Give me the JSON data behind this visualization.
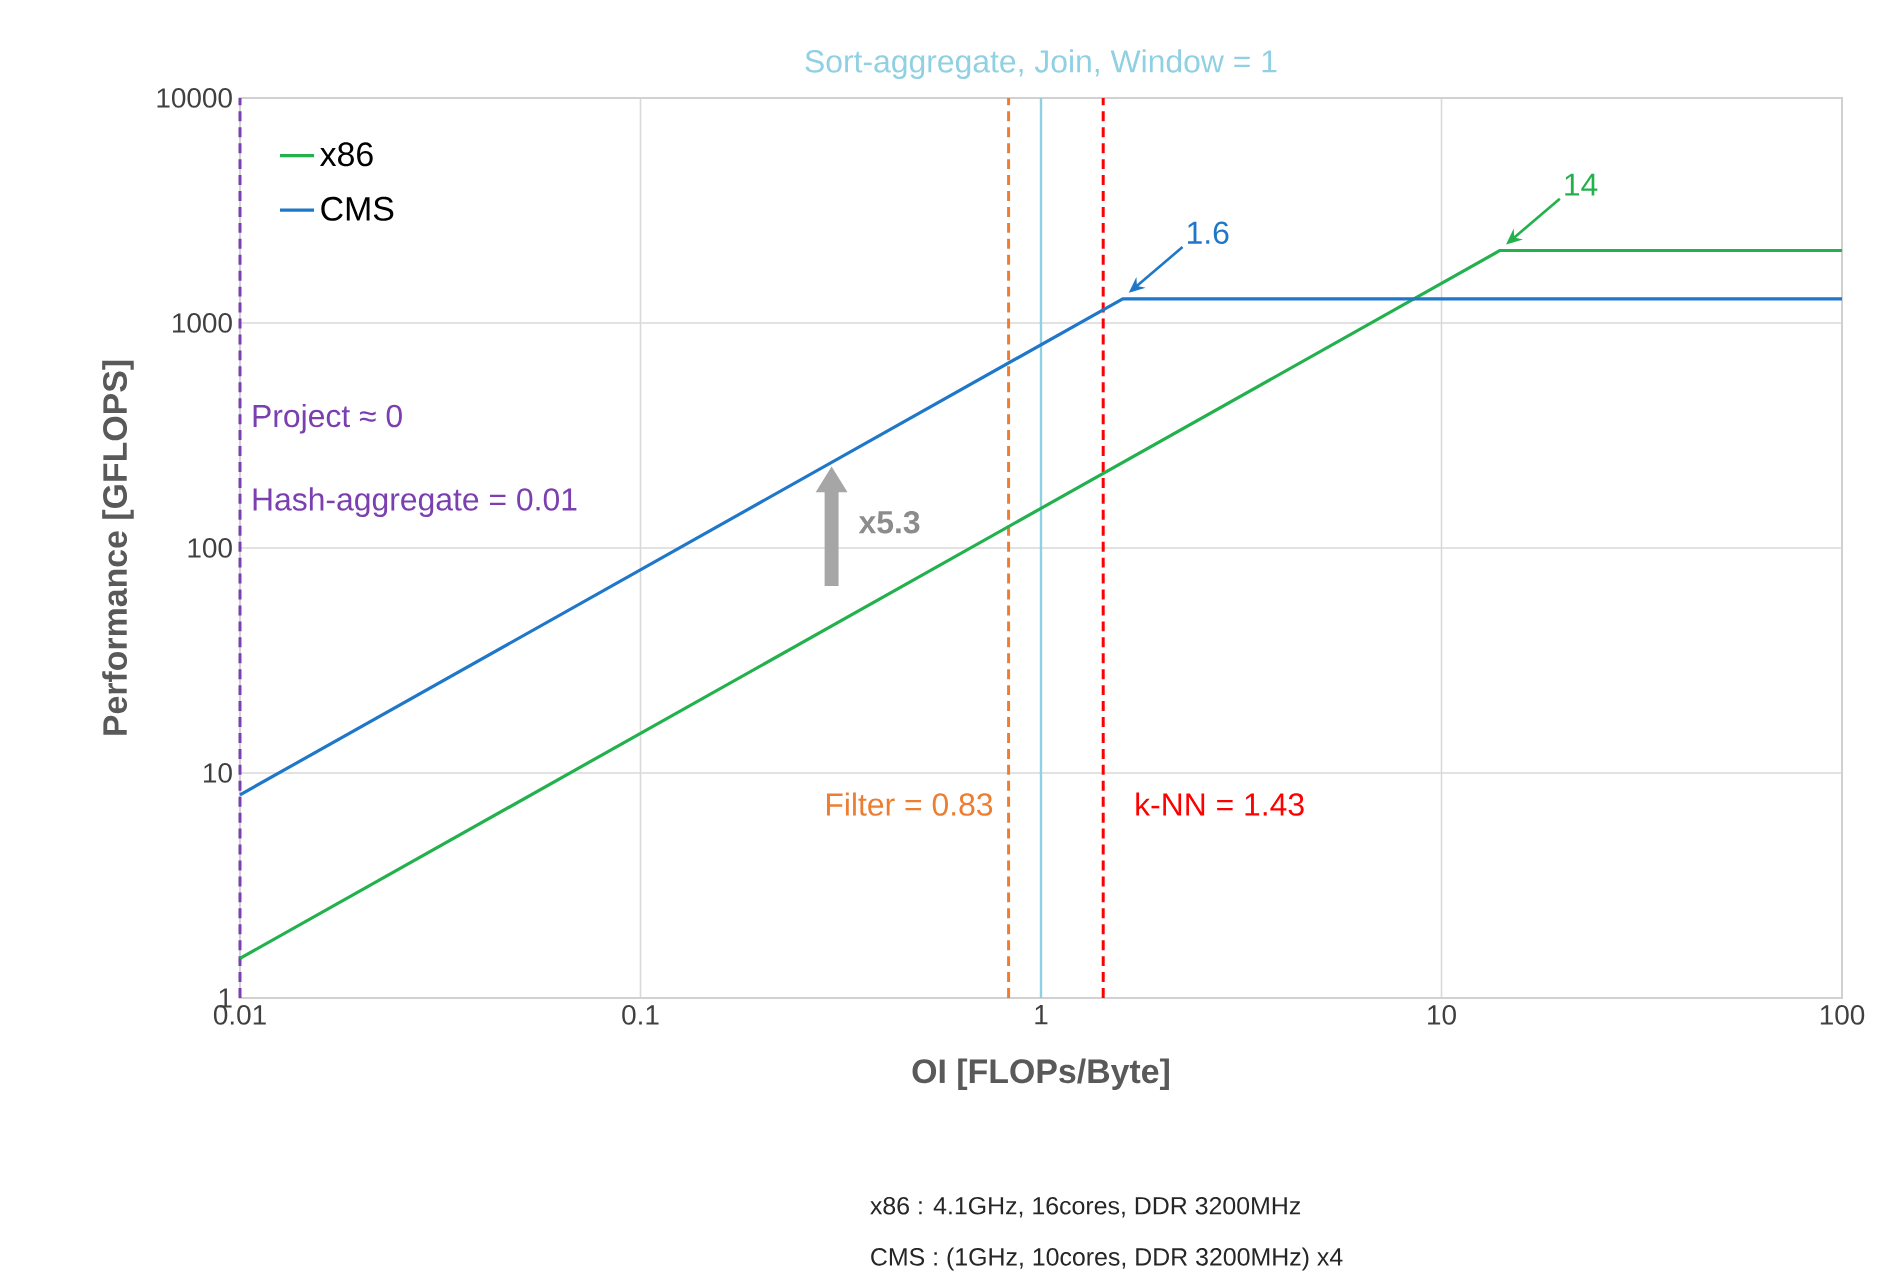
{
  "chart_data": {
    "type": "line",
    "xlabel": "OI [FLOPs/Byte]",
    "ylabel": "Performance [GFLOPS]",
    "series": [
      {
        "name": "x86",
        "color": "#22b14c",
        "x": [
          0.01,
          14,
          100
        ],
        "values": [
          1.5,
          2100,
          2100
        ]
      },
      {
        "name": "CMS",
        "color": "#1f77c9",
        "x": [
          0.01,
          1.6,
          100
        ],
        "values": [
          8,
          1280,
          1280
        ]
      }
    ],
    "xlim": [
      0.01,
      100
    ],
    "ylim": [
      1,
      10000
    ],
    "xticks": [
      0.01,
      0.1,
      1,
      10,
      100
    ],
    "yticks": [
      1,
      10,
      100,
      1000,
      10000
    ],
    "log": "xy",
    "grid": true,
    "legend": "top left",
    "marker": "none",
    "line_style": "solid",
    "ref_lines": [
      {
        "axis": "x",
        "value": 0.01,
        "label": "Hash-aggregate = 0.01",
        "color": "#7b3fb0",
        "line_style": "dashed"
      },
      {
        "axis": "x",
        "value": 0.83,
        "label": "Filter = 0.83",
        "color": "#ed7d31",
        "line_style": "dashed"
      },
      {
        "axis": "x",
        "value": 1,
        "label": "Sort-aggregate, Join, Window = 1",
        "color": "#8fd0e3",
        "line_style": "solid"
      },
      {
        "axis": "x",
        "value": 1.43,
        "label": "k-NN = 1.43",
        "color": "#ff0000",
        "line_style": "dashed"
      }
    ],
    "annotations": [
      {
        "text": "Project ≈ 0",
        "x": 0.01,
        "y": 300
      },
      {
        "text": "1.6",
        "x": 1.6,
        "y": 1280
      },
      {
        "text": "14",
        "x": 14,
        "y": 2100
      },
      {
        "text": "x5.3",
        "x": 0.3,
        "y": 240
      },
      "x86 : 4.1GHz,  16cores,  DDR 3200MHz",
      "CMS : (1GHz,  10cores,  DDR 3200MHz)  x4"
    ]
  }
}
